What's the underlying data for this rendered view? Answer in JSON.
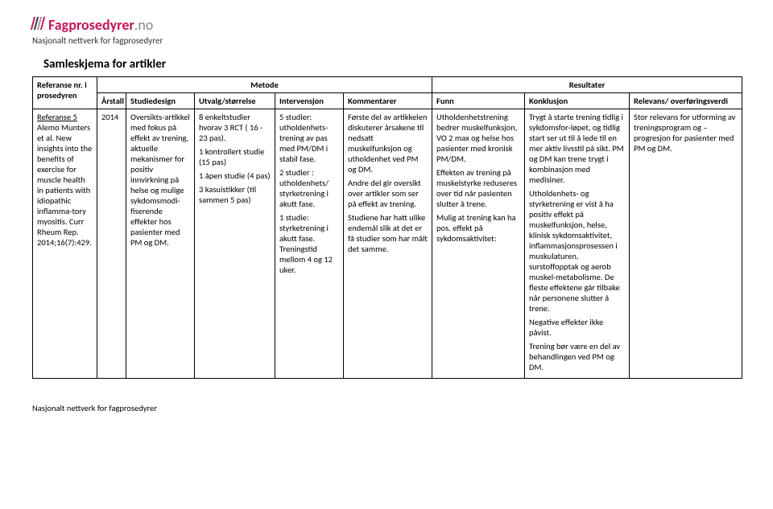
{
  "logo": {
    "brand": "Fagprosedyrer",
    "suffix": ".no",
    "subtitle": "Nasjonalt nettverk for fagprosedyrer"
  },
  "title": "Samleskjema for artikler",
  "group_headers": {
    "metode": "Metode",
    "resultater": "Resultater"
  },
  "columns": {
    "ref": "Referanse nr. i prosedyren",
    "year": "Årstall",
    "design": "Studiedesign",
    "size": "Utvalg/størrelse",
    "interv": "Intervensjon",
    "comm": "Kommentarer",
    "funn": "Funn",
    "konkl": "Konklusjon",
    "rel": "Relevans/ overføringsverdi"
  },
  "row": {
    "ref_link": "Referanse 5",
    "ref_rest": "Alemo Munters et al. New insights into the benefits of exercise for muscle health in patients with idiopathic inflamma-tory myositis. Curr  Rheum Rep. 2014;16(7):429.",
    "year": "2014",
    "design": "Oversikts-artikkel med fokus på effekt av trening, aktuelle mekanismer for positiv innvirkning på helse og mulige sykdomsmodi-fiserende effekter hos pasienter med PM og DM.",
    "size_p1": "8 enkeltstudier hvorav 3 RCT ( 16  - 23 pas).",
    "size_p2": "1 kontrollert studie (15 pas)",
    "size_p3": "1 åpen studie (4 pas)",
    "size_p4": "3 kasuistikker (til sammen 5 pas)",
    "interv_p1": "5 studier: utholdenhets-trening av pas med PM/DM i stabil fase.",
    "interv_p2": "2 studier : utholdenhets/ styrketrening i akutt fase.",
    "interv_p3": "1 studie: styrketrening i akutt fase. Treningstid mellom 4 og 12 uker.",
    "comm_p1": "Første del av artikkelen diskuterer årsakene til nedsatt muskelfunksjon og utholdenhet ved PM og DM.",
    "comm_p2": "Andre del gir oversikt over artikler som ser på effekt av trening.",
    "comm_p3": "Studiene har hatt ulike endemål slik at det er få studier som har målt det samme.",
    "funn_p1": "Utholdenhetstrening bedrer muskelfunksjon, VO 2 max og helse hos pasienter med kronisk PM/DM.",
    "funn_p2": "Effekten av trening på muskelstyrke reduseres over tid når pasienten slutter å trene.",
    "funn_p3": "Mulig at trening kan ha pos. effekt på sykdomsaktivitet:",
    "konkl_p1": "Trygt å starte trening tidlig i sykdomsfor-løpet, og tidlig start ser ut til å lede til en mer aktiv livsstil på sikt. PM og DM kan trene trygt i kombinasjon med medisiner.",
    "konkl_p2": "Utholdenhets- og styrketrening er vist å ha positiv effekt på muskelfunksjon, helse, klinisk sykdomsaktivitet, inflammasjonsprosessen i muskulaturen, surstoffopptak og aerob muskel-metabolisme. De fleste effektene går tilbake når personene slutter å trene.",
    "konkl_p3": "Negative effekter ikke påvist.",
    "konkl_p4": " Trening bør være en del av behandlingen ved PM og DM.",
    "rel": "Stor relevans for utforming av treningsprogram og – progresjon for pasienter med PM og DM."
  },
  "footer": "Nasjonalt nettverk for fagprosedyrer"
}
